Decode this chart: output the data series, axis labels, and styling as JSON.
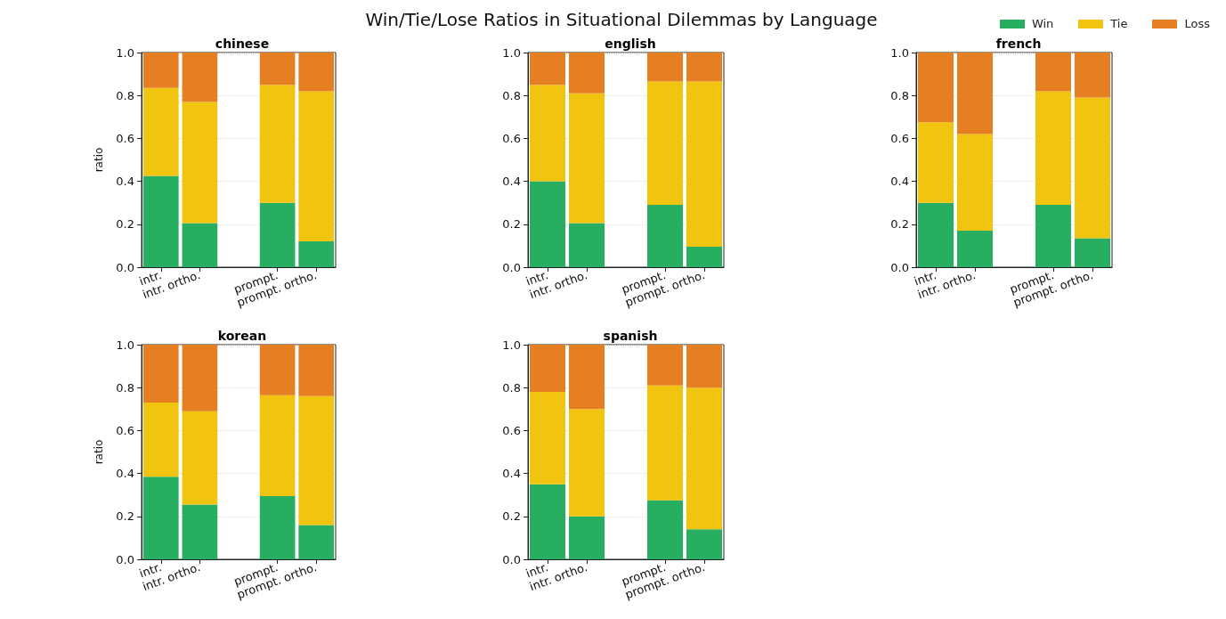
{
  "chart_data": [
    {
      "type": "bar",
      "title": "chinese",
      "ylabel": "ratio",
      "stacked": true,
      "grid": "y",
      "legend": "top right",
      "annotations": [
        "Win/Tie/Lose Ratios in Situational Dilemmas by Language"
      ],
      "categories": [
        "intr.",
        "intr. ortho.",
        null,
        "prompt.",
        "prompt. ortho."
      ],
      "ylim": [
        0,
        1
      ],
      "yticks": [
        {
          "value": 0,
          "label": "0.0"
        },
        {
          "value": 0.2,
          "label": "0.2"
        },
        {
          "value": 0.4,
          "label": "0.4"
        },
        {
          "value": 0.6,
          "label": "0.6"
        },
        {
          "value": 0.8,
          "label": "0.8"
        },
        {
          "value": 1,
          "label": "1.0"
        }
      ],
      "series": [
        {
          "name": "Win",
          "color": "#27ae60",
          "values": [
            0.425,
            0.205,
            null,
            0.3,
            0.12
          ]
        },
        {
          "name": "Tie",
          "color": "#f1c40f",
          "values": [
            0.41,
            0.565,
            null,
            0.55,
            0.7
          ]
        },
        {
          "name": "Loss",
          "color": "#e67e22",
          "values": [
            0.165,
            0.23,
            null,
            0.15,
            0.18
          ]
        }
      ]
    },
    {
      "type": "bar",
      "title": "english",
      "stacked": true,
      "grid": "y",
      "categories": [
        "intr.",
        "intr. ortho.",
        null,
        "prompt.",
        "prompt. ortho."
      ],
      "ylim": [
        0,
        1
      ],
      "yticks": [
        {
          "value": 0,
          "label": "0.0"
        },
        {
          "value": 0.2,
          "label": "0.2"
        },
        {
          "value": 0.4,
          "label": "0.4"
        },
        {
          "value": 0.6,
          "label": "0.6"
        },
        {
          "value": 0.8,
          "label": "0.8"
        },
        {
          "value": 1,
          "label": "1.0"
        }
      ],
      "series": [
        {
          "color": "#27ae60",
          "values": [
            0.4,
            0.205,
            null,
            0.29,
            0.095
          ]
        },
        {
          "color": "#f1c40f",
          "values": [
            0.45,
            0.605,
            null,
            0.575,
            0.77
          ]
        },
        {
          "color": "#e67e22",
          "values": [
            0.15,
            0.19,
            null,
            0.135,
            0.135
          ]
        }
      ]
    },
    {
      "type": "bar",
      "title": "french",
      "stacked": true,
      "grid": "y",
      "categories": [
        "intr.",
        "intr. ortho.",
        null,
        "prompt.",
        "prompt. ortho."
      ],
      "ylim": [
        0,
        1
      ],
      "yticks": [
        {
          "value": 0,
          "label": "0.0"
        },
        {
          "value": 0.2,
          "label": "0.2"
        },
        {
          "value": 0.4,
          "label": "0.4"
        },
        {
          "value": 0.6,
          "label": "0.6"
        },
        {
          "value": 0.8,
          "label": "0.8"
        },
        {
          "value": 1,
          "label": "1.0"
        }
      ],
      "series": [
        {
          "color": "#27ae60",
          "values": [
            0.3,
            0.17,
            null,
            0.29,
            0.135
          ]
        },
        {
          "color": "#f1c40f",
          "values": [
            0.375,
            0.45,
            null,
            0.53,
            0.655
          ]
        },
        {
          "color": "#e67e22",
          "values": [
            0.325,
            0.38,
            null,
            0.18,
            0.21
          ]
        }
      ]
    },
    {
      "type": "bar",
      "title": "korean",
      "ylabel": "ratio",
      "stacked": true,
      "grid": "y",
      "categories": [
        "intr.",
        "intr. ortho.",
        null,
        "prompt.",
        "prompt. ortho."
      ],
      "ylim": [
        0,
        1
      ],
      "yticks": [
        {
          "value": 0,
          "label": "0.0"
        },
        {
          "value": 0.2,
          "label": "0.2"
        },
        {
          "value": 0.4,
          "label": "0.4"
        },
        {
          "value": 0.6,
          "label": "0.6"
        },
        {
          "value": 0.8,
          "label": "0.8"
        },
        {
          "value": 1,
          "label": "1.0"
        }
      ],
      "series": [
        {
          "color": "#27ae60",
          "values": [
            0.385,
            0.255,
            null,
            0.295,
            0.16
          ]
        },
        {
          "color": "#f1c40f",
          "values": [
            0.345,
            0.435,
            null,
            0.47,
            0.6
          ]
        },
        {
          "color": "#e67e22",
          "values": [
            0.27,
            0.31,
            null,
            0.235,
            0.24
          ]
        }
      ]
    },
    {
      "type": "bar",
      "title": "spanish",
      "stacked": true,
      "grid": "y",
      "categories": [
        "intr.",
        "intr. ortho.",
        null,
        "prompt.",
        "prompt. ortho."
      ],
      "ylim": [
        0,
        1
      ],
      "yticks": [
        {
          "value": 0,
          "label": "0.0"
        },
        {
          "value": 0.2,
          "label": "0.2"
        },
        {
          "value": 0.4,
          "label": "0.4"
        },
        {
          "value": 0.6,
          "label": "0.6"
        },
        {
          "value": 0.8,
          "label": "0.8"
        },
        {
          "value": 1,
          "label": "1.0"
        }
      ],
      "series": [
        {
          "color": "#27ae60",
          "values": [
            0.35,
            0.2,
            null,
            0.275,
            0.14
          ]
        },
        {
          "color": "#f1c40f",
          "values": [
            0.43,
            0.5,
            null,
            0.535,
            0.66
          ]
        },
        {
          "color": "#e67e22",
          "values": [
            0.22,
            0.3,
            null,
            0.19,
            0.2
          ]
        }
      ]
    }
  ]
}
